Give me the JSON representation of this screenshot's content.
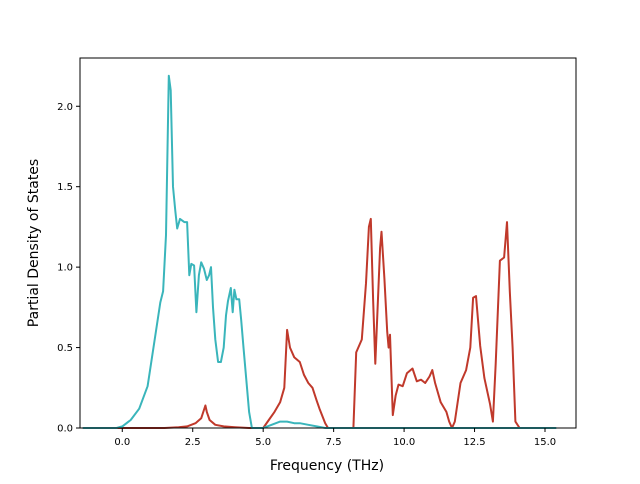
{
  "chart_data": {
    "type": "line",
    "title": "",
    "xlabel": "Frequency (THz)",
    "ylabel": "Partial Density of States",
    "xlim": [
      -1.5,
      16.1
    ],
    "ylim": [
      0.0,
      2.3
    ],
    "xticks": [
      0.0,
      2.5,
      5.0,
      7.5,
      10.0,
      12.5,
      15.0
    ],
    "xtick_labels": [
      "0.0",
      "2.5",
      "5.0",
      "7.5",
      "10.0",
      "12.5",
      "15.0"
    ],
    "yticks": [
      0.0,
      0.5,
      1.0,
      1.5,
      2.0
    ],
    "ytick_labels": [
      "0.0",
      "0.5",
      "1.0",
      "1.5",
      "2.0"
    ],
    "grid": false,
    "series": [
      {
        "color": "#c0392b",
        "points": [
          [
            -1.4,
            0
          ],
          [
            0,
            0
          ],
          [
            1.5,
            0
          ],
          [
            2,
            0.005
          ],
          [
            2.3,
            0.01
          ],
          [
            2.6,
            0.03
          ],
          [
            2.8,
            0.06
          ],
          [
            2.95,
            0.14
          ],
          [
            3.0,
            0.1
          ],
          [
            3.1,
            0.05
          ],
          [
            3.3,
            0.02
          ],
          [
            3.6,
            0.01
          ],
          [
            4.0,
            0.005
          ],
          [
            4.5,
            0
          ],
          [
            5.0,
            0
          ],
          [
            5.2,
            0.05
          ],
          [
            5.4,
            0.1
          ],
          [
            5.6,
            0.16
          ],
          [
            5.75,
            0.25
          ],
          [
            5.85,
            0.61
          ],
          [
            5.95,
            0.5
          ],
          [
            6.1,
            0.44
          ],
          [
            6.3,
            0.41
          ],
          [
            6.45,
            0.33
          ],
          [
            6.6,
            0.28
          ],
          [
            6.75,
            0.25
          ],
          [
            6.9,
            0.17
          ],
          [
            7.0,
            0.12
          ],
          [
            7.2,
            0.03
          ],
          [
            7.3,
            0
          ],
          [
            8.2,
            0
          ],
          [
            8.3,
            0.47
          ],
          [
            8.5,
            0.55
          ],
          [
            8.65,
            0.9
          ],
          [
            8.75,
            1.25
          ],
          [
            8.82,
            1.3
          ],
          [
            8.9,
            0.8
          ],
          [
            8.98,
            0.4
          ],
          [
            9.05,
            0.7
          ],
          [
            9.15,
            1.12
          ],
          [
            9.2,
            1.22
          ],
          [
            9.3,
            0.93
          ],
          [
            9.4,
            0.6
          ],
          [
            9.45,
            0.5
          ],
          [
            9.5,
            0.58
          ],
          [
            9.6,
            0.08
          ],
          [
            9.7,
            0.2
          ],
          [
            9.8,
            0.27
          ],
          [
            9.95,
            0.26
          ],
          [
            10.1,
            0.34
          ],
          [
            10.3,
            0.37
          ],
          [
            10.45,
            0.29
          ],
          [
            10.6,
            0.3
          ],
          [
            10.75,
            0.28
          ],
          [
            10.9,
            0.32
          ],
          [
            11.0,
            0.36
          ],
          [
            11.1,
            0.28
          ],
          [
            11.3,
            0.16
          ],
          [
            11.5,
            0.1
          ],
          [
            11.6,
            0.04
          ],
          [
            11.7,
            0
          ],
          [
            11.8,
            0.04
          ],
          [
            12.0,
            0.28
          ],
          [
            12.2,
            0.36
          ],
          [
            12.35,
            0.5
          ],
          [
            12.45,
            0.81
          ],
          [
            12.55,
            0.82
          ],
          [
            12.7,
            0.51
          ],
          [
            12.85,
            0.31
          ],
          [
            13.05,
            0.15
          ],
          [
            13.15,
            0.04
          ],
          [
            13.25,
            0.4
          ],
          [
            13.4,
            1.04
          ],
          [
            13.55,
            1.06
          ],
          [
            13.65,
            1.28
          ],
          [
            13.75,
            0.85
          ],
          [
            13.85,
            0.5
          ],
          [
            13.95,
            0.04
          ],
          [
            14.1,
            0
          ],
          [
            15.2,
            0
          ]
        ]
      },
      {
        "color": "#3ab5bb",
        "points": [
          [
            -1.4,
            0
          ],
          [
            -0.2,
            0
          ],
          [
            0,
            0.01
          ],
          [
            0.3,
            0.05
          ],
          [
            0.6,
            0.12
          ],
          [
            0.9,
            0.26
          ],
          [
            1.15,
            0.55
          ],
          [
            1.35,
            0.78
          ],
          [
            1.45,
            0.85
          ],
          [
            1.55,
            1.2
          ],
          [
            1.65,
            2.19
          ],
          [
            1.72,
            2.1
          ],
          [
            1.8,
            1.5
          ],
          [
            1.88,
            1.35
          ],
          [
            1.95,
            1.24
          ],
          [
            2.05,
            1.3
          ],
          [
            2.2,
            1.28
          ],
          [
            2.3,
            1.28
          ],
          [
            2.38,
            0.95
          ],
          [
            2.45,
            1.02
          ],
          [
            2.55,
            1.01
          ],
          [
            2.63,
            0.72
          ],
          [
            2.72,
            0.95
          ],
          [
            2.8,
            1.03
          ],
          [
            2.9,
            0.99
          ],
          [
            3.0,
            0.92
          ],
          [
            3.08,
            0.95
          ],
          [
            3.15,
            1.0
          ],
          [
            3.22,
            0.75
          ],
          [
            3.3,
            0.55
          ],
          [
            3.4,
            0.41
          ],
          [
            3.5,
            0.41
          ],
          [
            3.6,
            0.5
          ],
          [
            3.68,
            0.7
          ],
          [
            3.75,
            0.79
          ],
          [
            3.85,
            0.87
          ],
          [
            3.92,
            0.72
          ],
          [
            3.98,
            0.86
          ],
          [
            4.05,
            0.8
          ],
          [
            4.15,
            0.8
          ],
          [
            4.22,
            0.67
          ],
          [
            4.3,
            0.5
          ],
          [
            4.4,
            0.3
          ],
          [
            4.5,
            0.1
          ],
          [
            4.6,
            0
          ],
          [
            5.0,
            0
          ],
          [
            5.3,
            0.02
          ],
          [
            5.6,
            0.04
          ],
          [
            5.85,
            0.04
          ],
          [
            6.1,
            0.03
          ],
          [
            6.3,
            0.03
          ],
          [
            6.6,
            0.02
          ],
          [
            6.9,
            0.01
          ],
          [
            7.2,
            0
          ],
          [
            15.4,
            0
          ]
        ]
      }
    ]
  }
}
